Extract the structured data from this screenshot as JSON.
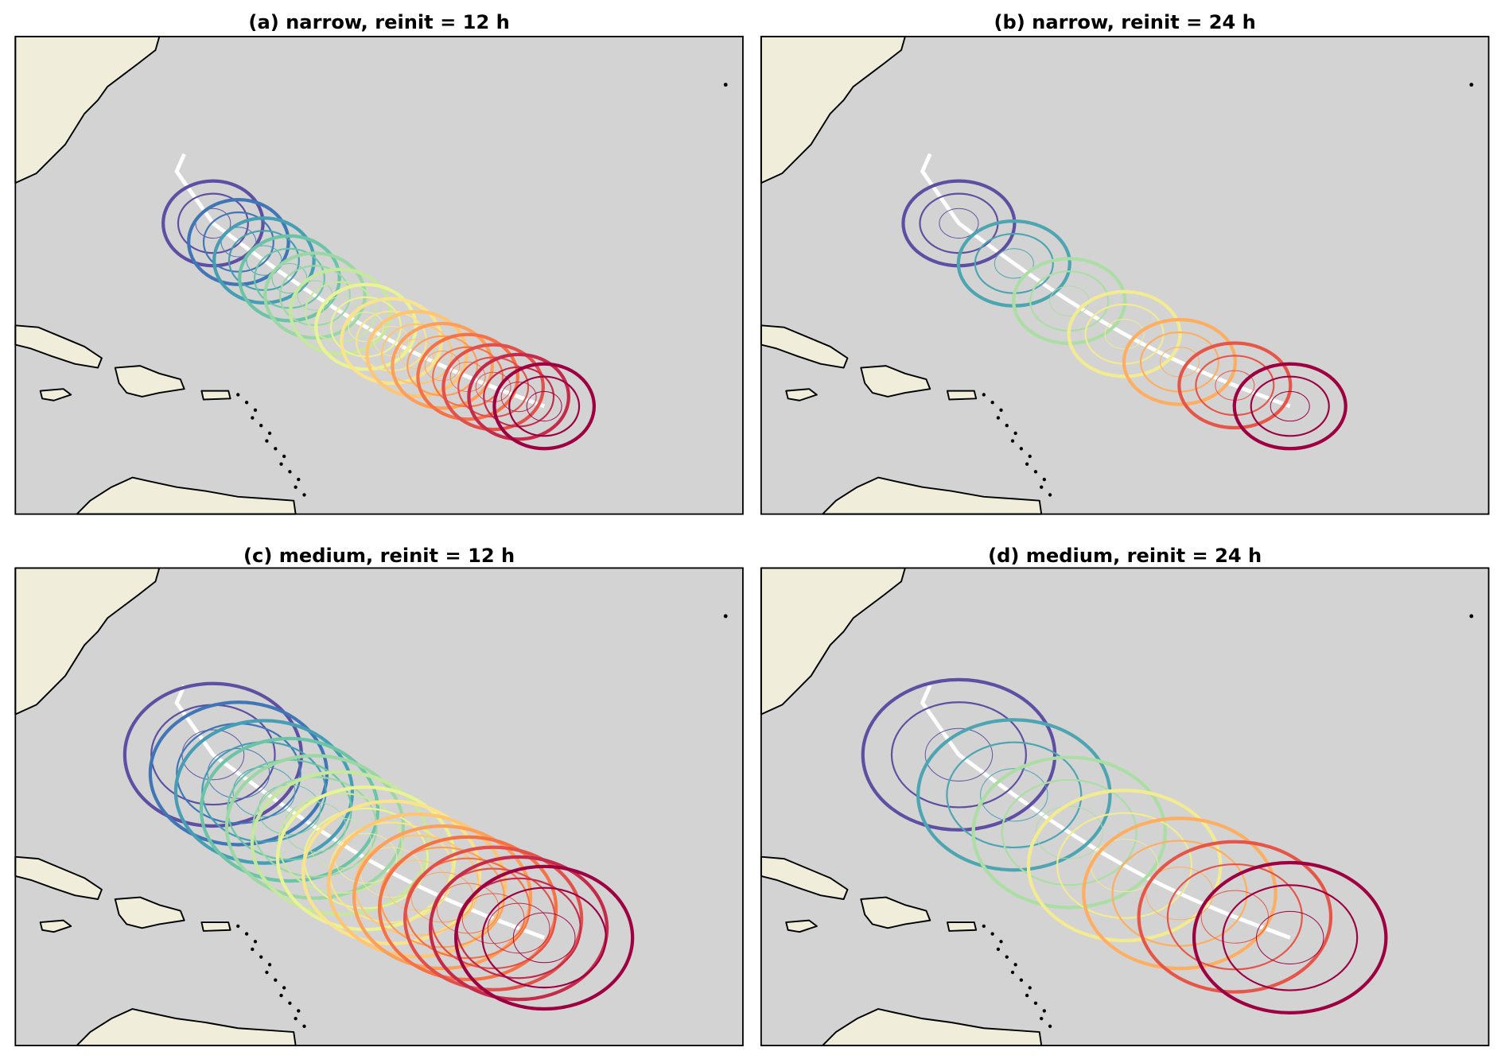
{
  "panels": [
    {
      "title": "(a) narrow, reinit = 12 h"
    },
    {
      "title": "(b) narrow, reinit = 24 h"
    },
    {
      "title": "(c) medium, reinit = 12 h"
    },
    {
      "title": "(d) medium, reinit = 24 h"
    }
  ]
}
